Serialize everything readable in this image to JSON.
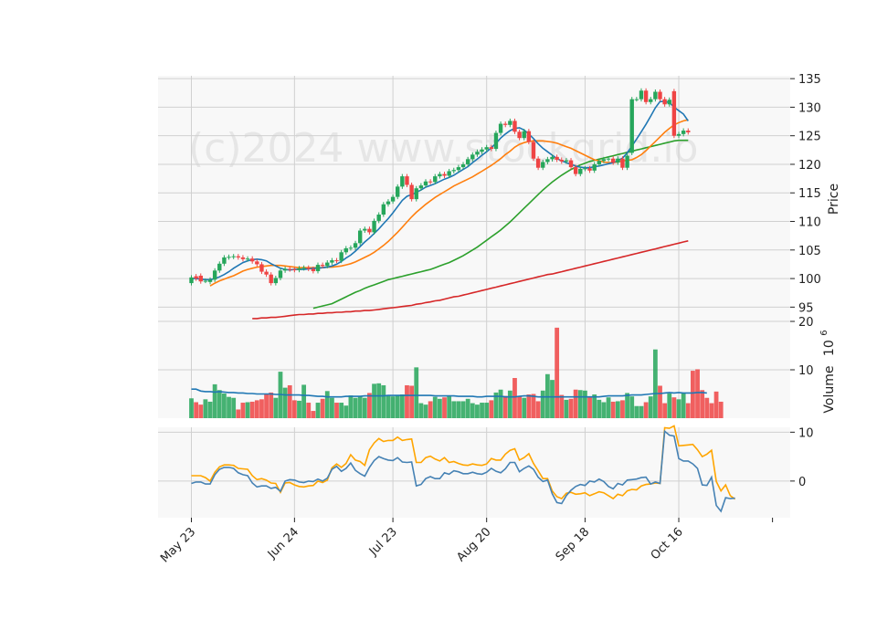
{
  "chart_data": {
    "type": "candlestick",
    "watermark": "(c)2024 www.stockgrid.io",
    "x_tick_labels": [
      "May 23",
      "Jun 24",
      "Jul 23",
      "Aug 20",
      "Sep 18",
      "Oct 16"
    ],
    "x_tick_bar_index": [
      0,
      22,
      43,
      63,
      84,
      104
    ],
    "grid": true,
    "colors": {
      "up": "#26a65b",
      "down": "#ef4444",
      "ma_fast": "#1f77b4",
      "ma_mid": "#ff7f0e",
      "ma_slow": "#2ca02c",
      "ma_long": "#d62728",
      "osc_a": "#4682b4",
      "osc_b": "#ffa500",
      "vol_ma": "#1f77b4"
    },
    "price_panel": {
      "ylabel": "Price",
      "ylim": [
        92.5,
        135.5
      ],
      "yticks": [
        95,
        100,
        105,
        110,
        115,
        120,
        125,
        130,
        135
      ],
      "closes": [
        100.2,
        100.0,
        99.5,
        99.6,
        99.8,
        101.4,
        102.6,
        103.7,
        103.8,
        103.9,
        103.7,
        103.4,
        103.5,
        103.0,
        102.5,
        101.2,
        100.7,
        99.2,
        100.1,
        101.4,
        101.7,
        101.6,
        101.5,
        101.8,
        101.9,
        101.7,
        101.3,
        102.4,
        102.2,
        102.8,
        103.2,
        103.1,
        104.6,
        105.3,
        105.4,
        106.2,
        108.4,
        108.7,
        108.1,
        110.1,
        111.2,
        113.0,
        113.5,
        114.3,
        116.1,
        117.9,
        116.4,
        113.9,
        115.8,
        116.3,
        117.0,
        116.9,
        117.9,
        118.3,
        118.0,
        118.8,
        119.0,
        119.5,
        120.0,
        120.9,
        121.7,
        122.2,
        122.6,
        123.0,
        122.7,
        125.5,
        127.1,
        126.9,
        127.6,
        125.7,
        124.6,
        125.8,
        123.9,
        121.0,
        119.4,
        120.4,
        120.9,
        121.3,
        120.8,
        120.5,
        120.7,
        119.5,
        118.3,
        119.2,
        119.3,
        118.9,
        120.0,
        120.6,
        120.9,
        121.0,
        120.3,
        121.0,
        119.4,
        121.5,
        131.4,
        131.4,
        132.9,
        130.9,
        131.4,
        132.7,
        131.4,
        130.5,
        131.3,
        125.0,
        125.3,
        125.9,
        125.6
      ],
      "opens": [
        99.2,
        100.4,
        100.5,
        99.6,
        99.4,
        99.8,
        101.4,
        102.6,
        103.7,
        103.8,
        103.9,
        103.7,
        103.4,
        103.5,
        103.0,
        102.5,
        101.2,
        100.7,
        99.2,
        100.1,
        101.4,
        101.7,
        101.6,
        101.5,
        101.8,
        101.9,
        101.7,
        101.3,
        102.4,
        102.2,
        102.8,
        103.2,
        103.1,
        104.6,
        105.3,
        105.4,
        106.2,
        108.4,
        108.7,
        108.1,
        110.1,
        111.2,
        113.0,
        113.5,
        114.3,
        116.1,
        117.9,
        116.4,
        113.9,
        115.8,
        116.3,
        117.0,
        116.9,
        117.9,
        118.3,
        118.0,
        118.8,
        119.0,
        119.5,
        120.0,
        120.9,
        121.7,
        122.2,
        122.6,
        123.0,
        122.7,
        125.5,
        127.1,
        126.9,
        127.6,
        125.7,
        124.6,
        125.8,
        123.9,
        121.0,
        119.4,
        120.4,
        120.9,
        121.3,
        120.8,
        120.5,
        120.7,
        119.5,
        118.3,
        119.2,
        119.3,
        118.9,
        120.0,
        120.6,
        120.9,
        121.0,
        120.3,
        121.0,
        119.4,
        122.0,
        131.4,
        131.4,
        132.9,
        130.9,
        131.4,
        132.7,
        131.4,
        130.5,
        132.8,
        125.0,
        125.3,
        125.9
      ],
      "moving_averages": {
        "fast": [
          100.0,
          100.0,
          99.9,
          99.8,
          99.8,
          100.0,
          100.3,
          100.7,
          101.2,
          101.8,
          102.3,
          102.8,
          103.1,
          103.3,
          103.4,
          103.3,
          103.1,
          102.6,
          102.2,
          101.8,
          101.6,
          101.5,
          101.6,
          101.6,
          101.6,
          101.7,
          101.8,
          101.8,
          101.9,
          102.0,
          102.2,
          102.5,
          103.0,
          103.6,
          104.1,
          104.8,
          105.6,
          106.4,
          107.1,
          107.9,
          108.7,
          109.6,
          110.5,
          111.5,
          112.6,
          113.7,
          114.4,
          114.7,
          115.1,
          115.5,
          116.0,
          116.3,
          116.6,
          117.0,
          117.4,
          117.7,
          118.1,
          118.6,
          119.1,
          119.6,
          120.3,
          120.9,
          121.6,
          122.2,
          122.9,
          123.7,
          124.6,
          125.3,
          125.9,
          126.3,
          126.4,
          126.0,
          125.3,
          124.5,
          123.6,
          122.8,
          122.2,
          121.6,
          121.0,
          120.6,
          120.3,
          120.0,
          119.7,
          119.5,
          119.4,
          119.4,
          119.6,
          119.7,
          119.9,
          120.1,
          120.3,
          120.6,
          121.1,
          122.0,
          123.2,
          124.4,
          125.7,
          127.0,
          128.4,
          129.9,
          131.0,
          131.0,
          130.8,
          130.0,
          129.4,
          128.8,
          127.6
        ],
        "mid": [
          98.7,
          99.2,
          99.6,
          99.9,
          100.2,
          100.5,
          100.9,
          101.3,
          101.6,
          101.8,
          102.0,
          102.1,
          102.2,
          102.3,
          102.3,
          102.3,
          102.2,
          102.1,
          102.0,
          101.9,
          101.9,
          101.9,
          101.9,
          101.9,
          101.9,
          102.0,
          102.0,
          102.1,
          102.2,
          102.4,
          102.6,
          102.9,
          103.3,
          103.7,
          104.1,
          104.6,
          105.2,
          105.8,
          106.5,
          107.3,
          108.1,
          109.0,
          109.9,
          110.8,
          111.6,
          112.3,
          113.0,
          113.6,
          114.2,
          114.7,
          115.2,
          115.7,
          116.2,
          116.6,
          117.0,
          117.4,
          117.8,
          118.3,
          118.8,
          119.3,
          119.8,
          120.4,
          121.0,
          121.7,
          122.3,
          123.0,
          123.5,
          123.8,
          124.0,
          124.1,
          124.1,
          124.1,
          124.0,
          123.9,
          123.7,
          123.4,
          123.1,
          122.8,
          122.4,
          122.0,
          121.6,
          121.2,
          120.8,
          120.6,
          120.4,
          120.3,
          120.3,
          120.4,
          120.6,
          120.7,
          120.8,
          121.2,
          121.7,
          122.4,
          123.2,
          124.0,
          124.8,
          125.6,
          126.3,
          126.9,
          127.3,
          127.6,
          127.8
        ],
        "slow": [
          94.8,
          95.0,
          95.2,
          95.4,
          95.6,
          96.0,
          96.4,
          96.8,
          97.2,
          97.6,
          97.9,
          98.3,
          98.6,
          98.9,
          99.2,
          99.5,
          99.8,
          100.0,
          100.2,
          100.4,
          100.6,
          100.8,
          101.0,
          101.2,
          101.4,
          101.6,
          101.9,
          102.2,
          102.5,
          102.8,
          103.2,
          103.6,
          104.0,
          104.5,
          105.0,
          105.5,
          106.1,
          106.7,
          107.3,
          107.9,
          108.5,
          109.2,
          109.9,
          110.7,
          111.5,
          112.3,
          113.1,
          113.9,
          114.7,
          115.5,
          116.2,
          116.9,
          117.5,
          118.1,
          118.6,
          119.1,
          119.5,
          119.9,
          120.2,
          120.5,
          120.7,
          120.9,
          121.1,
          121.3,
          121.5,
          121.7,
          121.9,
          122.1,
          122.3,
          122.5,
          122.7,
          122.9,
          123.1,
          123.3,
          123.5,
          123.7,
          123.9,
          124.1,
          124.2,
          124.2,
          124.2
        ],
        "long": [
          93.0,
          93.0,
          93.1,
          93.1,
          93.2,
          93.2,
          93.3,
          93.4,
          93.5,
          93.6,
          93.7,
          93.7,
          93.8,
          93.8,
          93.9,
          93.9,
          94.0,
          94.0,
          94.1,
          94.1,
          94.2,
          94.2,
          94.3,
          94.3,
          94.4,
          94.4,
          94.5,
          94.6,
          94.7,
          94.8,
          94.9,
          95.0,
          95.1,
          95.2,
          95.3,
          95.5,
          95.6,
          95.8,
          95.9,
          96.1,
          96.2,
          96.4,
          96.6,
          96.8,
          96.9,
          97.1,
          97.3,
          97.5,
          97.7,
          97.9,
          98.1,
          98.3,
          98.5,
          98.7,
          98.9,
          99.1,
          99.3,
          99.5,
          99.7,
          99.9,
          100.1,
          100.3,
          100.5,
          100.7,
          100.8,
          101.0,
          101.2,
          101.4,
          101.6,
          101.8,
          102.0,
          102.2,
          102.4,
          102.6,
          102.8,
          103.0,
          103.2,
          103.4,
          103.6,
          103.8,
          104.0,
          104.2,
          104.4,
          104.6,
          104.8,
          105.0,
          105.2,
          105.4,
          105.6,
          105.8,
          106.0,
          106.2,
          106.4,
          106.6
        ]
      }
    },
    "volume_panel": {
      "ylabel": "Volume",
      "ylabel_exp": "10",
      "ylabel_sup": "6",
      "ylim": [
        0,
        20
      ],
      "yticks": [
        10,
        20
      ],
      "values": [
        4.1,
        3.3,
        2.8,
        3.9,
        3.4,
        7.0,
        5.8,
        5.1,
        4.4,
        4.2,
        1.8,
        3.2,
        3.3,
        3.4,
        3.7,
        3.9,
        5.0,
        5.3,
        4.2,
        9.6,
        6.3,
        6.8,
        3.7,
        3.6,
        6.9,
        3.2,
        1.5,
        3.2,
        4.0,
        5.6,
        4.2,
        3.2,
        3.2,
        2.6,
        4.7,
        4.2,
        4.6,
        4.2,
        5.2,
        7.1,
        7.2,
        6.8,
        4.6,
        4.5,
        4.7,
        4.9,
        6.8,
        6.7,
        10.5,
        3.1,
        2.8,
        3.5,
        4.4,
        4.0,
        4.3,
        4.5,
        3.5,
        3.5,
        3.5,
        4.0,
        3.1,
        2.8,
        3.2,
        3.2,
        3.7,
        5.3,
        5.9,
        4.6,
        5.7,
        8.3,
        4.6,
        4.2,
        4.9,
        5.0,
        3.5,
        5.7,
        9.1,
        7.9,
        18.7,
        4.8,
        3.8,
        4.0,
        5.9,
        5.8,
        5.7,
        4.5,
        4.9,
        3.8,
        3.3,
        4.3,
        3.4,
        3.5,
        3.7,
        5.2,
        4.5,
        2.5,
        2.5,
        3.3,
        4.5,
        14.2,
        6.7,
        3.1,
        5.1,
        4.3,
        3.9,
        5.2,
        3.1,
        9.8,
        10.1,
        5.8,
        4.2,
        3.1,
        5.5,
        3.4
      ],
      "volume_ma": [
        6.0,
        6.0,
        5.6,
        5.5,
        5.5,
        5.4,
        5.5,
        5.4,
        5.3,
        5.3,
        5.2,
        5.2,
        5.1,
        5.1,
        5.0,
        5.0,
        5.0,
        5.0,
        4.9,
        4.9,
        4.8,
        4.8,
        4.8,
        4.8,
        4.7,
        4.7,
        4.6,
        4.5,
        4.5,
        4.4,
        4.4,
        4.4,
        4.4,
        4.5,
        4.5,
        4.5,
        4.5,
        4.6,
        4.6,
        4.6,
        4.6,
        4.6,
        4.7,
        4.7,
        4.7,
        4.7,
        4.7,
        4.7,
        4.7,
        4.7,
        4.7,
        4.7,
        4.6,
        4.6,
        4.6,
        4.6,
        4.6,
        4.5,
        4.5,
        4.5,
        4.5,
        4.4,
        4.4,
        4.5,
        4.5,
        4.5,
        4.5,
        4.4,
        4.4,
        4.4,
        4.5,
        4.6,
        4.6,
        4.5,
        4.4,
        4.4,
        4.4,
        4.4,
        4.4,
        4.4,
        4.4,
        4.4,
        4.4,
        4.4,
        4.4,
        4.4,
        4.4,
        4.4,
        4.5,
        4.6,
        4.6,
        4.6,
        4.6,
        4.7,
        4.8,
        4.8,
        4.8,
        4.9,
        5.0,
        5.1,
        5.1,
        5.2,
        5.3,
        5.2,
        5.3,
        5.2,
        5.2,
        5.2,
        5.3,
        5.3,
        5.2
      ]
    },
    "oscillator_panel": {
      "ylim": [
        -7.5,
        11
      ],
      "yticks": [
        0,
        10
      ],
      "series_a": [
        -0.5,
        -0.2,
        -0.2,
        -0.6,
        -0.6,
        1.3,
        2.4,
        2.8,
        2.8,
        2.6,
        1.7,
        1.3,
        1.1,
        -0.4,
        -1.2,
        -1.0,
        -1.0,
        -1.5,
        -1.3,
        -2.1,
        0.0,
        0.3,
        0.2,
        -0.2,
        -0.3,
        0.0,
        -0.1,
        0.4,
        0.0,
        0.6,
        2.4,
        3.0,
        2.0,
        2.6,
        3.7,
        2.2,
        1.5,
        1.0,
        2.8,
        4.2,
        5.0,
        4.6,
        4.3,
        4.2,
        4.8,
        3.9,
        3.8,
        3.9,
        -1.0,
        -0.7,
        0.5,
        0.9,
        0.5,
        0.5,
        1.7,
        1.4,
        2.1,
        1.9,
        1.5,
        1.5,
        1.8,
        1.5,
        1.4,
        1.8,
        2.6,
        2.0,
        1.7,
        2.5,
        3.8,
        3.8,
        1.9,
        2.6,
        3.1,
        2.4,
        0.8,
        -0.1,
        0.2,
        -2.6,
        -4.4,
        -4.6,
        -3.0,
        -1.9,
        -1.1,
        -0.7,
        -0.9,
        0.0,
        -0.2,
        0.4,
        -0.1,
        -1.1,
        -1.6,
        -0.5,
        -0.8,
        0.2,
        0.3,
        0.4,
        0.7,
        0.8,
        -0.6,
        -0.2,
        -0.5,
        10.2,
        9.4,
        9.2,
        4.6,
        4.1,
        4.1,
        3.5,
        2.6,
        -0.8,
        -0.9,
        0.8,
        -5.0,
        -6.2,
        -3.4,
        -3.6,
        -3.5
      ],
      "series_b": [
        1.1,
        1.1,
        1.1,
        0.7,
        0.0,
        1.8,
        2.9,
        3.3,
        3.3,
        3.2,
        2.6,
        2.5,
        2.4,
        1.1,
        0.3,
        0.5,
        0.2,
        -0.4,
        -0.5,
        -2.3,
        -0.4,
        -0.3,
        -0.8,
        -1.1,
        -1.2,
        -1.0,
        -0.9,
        0.0,
        -0.3,
        0.2,
        2.7,
        3.5,
        2.8,
        3.6,
        5.4,
        4.3,
        4.0,
        3.2,
        6.4,
        7.8,
        8.7,
        8.1,
        8.3,
        8.3,
        9.0,
        8.3,
        8.5,
        8.6,
        3.8,
        3.8,
        4.8,
        5.1,
        4.5,
        4.1,
        4.8,
        3.8,
        4.0,
        3.6,
        3.3,
        3.2,
        3.5,
        3.3,
        3.2,
        3.5,
        4.6,
        4.3,
        4.3,
        5.5,
        6.3,
        6.6,
        4.3,
        4.8,
        5.6,
        3.6,
        2.1,
        0.5,
        0.5,
        -2.0,
        -3.2,
        -3.6,
        -2.5,
        -2.3,
        -2.7,
        -2.6,
        -2.4,
        -3.0,
        -2.6,
        -2.2,
        -2.4,
        -3.0,
        -3.6,
        -2.7,
        -3.0,
        -2.0,
        -1.7,
        -1.8,
        -1.0,
        -0.7,
        -0.6,
        -0.4,
        -0.5,
        10.9,
        10.8,
        11.3,
        7.2,
        7.3,
        7.4,
        7.5,
        6.4,
        5.0,
        5.5,
        6.3,
        -0.1,
        -2.0,
        -0.8,
        -3.0,
        -3.7
      ]
    }
  }
}
